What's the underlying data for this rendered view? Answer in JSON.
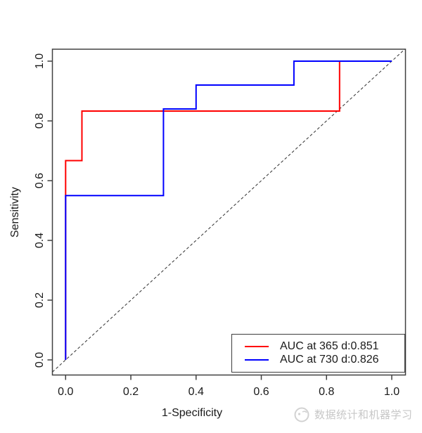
{
  "chart_data": {
    "type": "line",
    "subtype": "roc_step_curves",
    "title": "",
    "xlabel": "1-Specificity",
    "ylabel": "Sensitivity",
    "xlim": [
      0.0,
      1.0
    ],
    "ylim": [
      0.0,
      1.0
    ],
    "grid": false,
    "x_ticks": [
      0.0,
      0.2,
      0.4,
      0.6,
      0.8,
      1.0
    ],
    "x_tick_labels": [
      "0.0",
      "0.2",
      "0.4",
      "0.6",
      "0.8",
      "1.0"
    ],
    "y_ticks": [
      0.0,
      0.2,
      0.4,
      0.6,
      0.8,
      1.0
    ],
    "y_tick_labels": [
      "0.0",
      "0.2",
      "0.4",
      "0.6",
      "0.8",
      "1.0"
    ],
    "legend": {
      "position": "bottom-right",
      "entries": [
        {
          "label": "AUC at 365 d:0.851",
          "color": "#ff0000"
        },
        {
          "label": "AUC at 730 d:0.826",
          "color": "#0000ff"
        }
      ]
    },
    "series": [
      {
        "name": "AUC at 365 d:0.851",
        "time_days": 365,
        "auc": 0.851,
        "color": "#ff0000",
        "points": [
          [
            0,
            0
          ],
          [
            0,
            0.667
          ],
          [
            0.05,
            0.667
          ],
          [
            0.05,
            0.833
          ],
          [
            0.84,
            0.833
          ],
          [
            0.84,
            1.0
          ],
          [
            1.0,
            1.0
          ]
        ]
      },
      {
        "name": "AUC at 730 d:0.826",
        "time_days": 730,
        "auc": 0.826,
        "color": "#0000ff",
        "points": [
          [
            0,
            0
          ],
          [
            0,
            0.55
          ],
          [
            0.3,
            0.55
          ],
          [
            0.3,
            0.84
          ],
          [
            0.4,
            0.84
          ],
          [
            0.4,
            0.92
          ],
          [
            0.7,
            0.92
          ],
          [
            0.7,
            1.0
          ],
          [
            1.0,
            1.0
          ]
        ]
      }
    ],
    "reference_line": {
      "type": "diagonal",
      "style": "dashed",
      "color": "#303030",
      "from": [
        0,
        0
      ],
      "to": [
        1,
        1
      ]
    }
  },
  "frame": {
    "background": "#ffffff",
    "axis_color": "#404040",
    "text_color": "#1a1a1a"
  },
  "watermark": {
    "text": "数据统计和机器学习",
    "color": "#c7c7c7",
    "logo": "circle-mascot-icon"
  }
}
